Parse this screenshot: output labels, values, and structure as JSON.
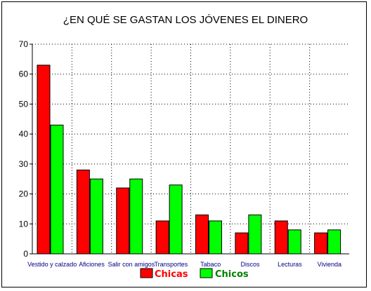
{
  "chart_data": {
    "type": "bar",
    "title": "¿EN QUÉ SE GASTAN LOS JÓVENES EL DINERO",
    "xlabel": "",
    "ylabel": "",
    "ylim": [
      0,
      70
    ],
    "yticks": [
      0,
      10,
      20,
      30,
      40,
      50,
      60,
      70
    ],
    "grid": true,
    "legend_position": "bottom",
    "categories": [
      "Vestido y calzado",
      "Aficiones",
      "Salir con amigos",
      "Transportes",
      "Tabaco",
      "Discos",
      "Lecturas",
      "Vivienda"
    ],
    "series": [
      {
        "name": "Chicas",
        "color": "#ff0000",
        "values": [
          63,
          28,
          22,
          11,
          13,
          7,
          11,
          7
        ]
      },
      {
        "name": "Chicos",
        "color": "#00ff00",
        "values": [
          43,
          25,
          25,
          23,
          11,
          13,
          8,
          8
        ]
      }
    ],
    "legend_text_colors": [
      "#ff0000",
      "#008000"
    ]
  }
}
